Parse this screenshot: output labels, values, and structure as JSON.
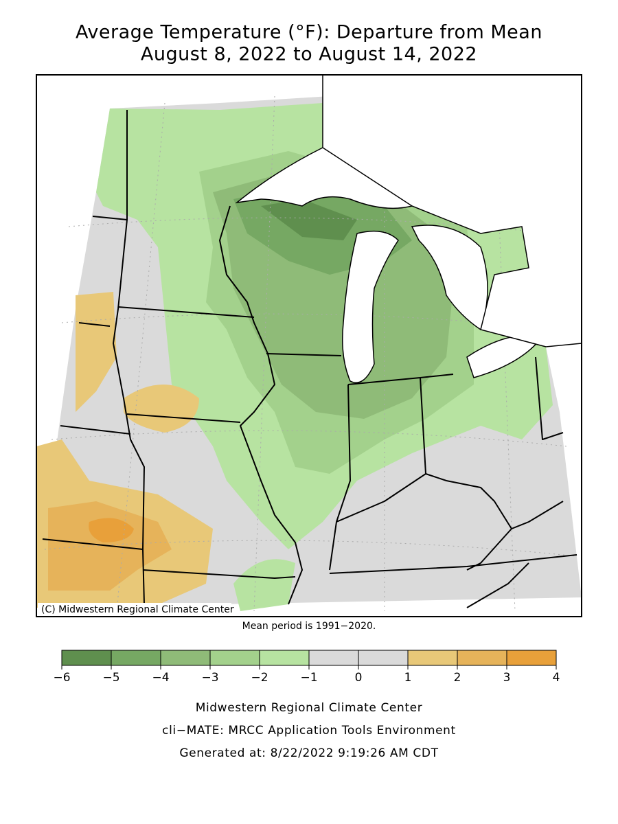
{
  "title": [
    "Average Temperature (°F): Departure from Mean",
    "August 8, 2022 to August 14, 2022"
  ],
  "credit": "(C) Midwestern Regional Climate Center",
  "note": "Mean period is 1991−2020.",
  "legend": {
    "ticks": [
      {
        "value": -6,
        "label": "−6"
      },
      {
        "value": -5,
        "label": "−5"
      },
      {
        "value": -4,
        "label": "−4"
      },
      {
        "value": -3,
        "label": "−3"
      },
      {
        "value": -2,
        "label": "−2"
      },
      {
        "value": -1,
        "label": "−1"
      },
      0,
      1,
      2,
      3,
      4
    ],
    "colors": [
      "#5f8f4e",
      "#76a863",
      "#8fbb78",
      "#a3d18c",
      "#b7e3a1",
      "#dadada",
      "#dadada",
      "#e8c878",
      "#e6b35a",
      "#e8a03a"
    ]
  },
  "footer": [
    "Midwestern Regional Climate Center",
    "cli−MATE: MRCC Application Tools Environment",
    "Generated at: 8/22/2022 9:19:26 AM CDT"
  ]
}
